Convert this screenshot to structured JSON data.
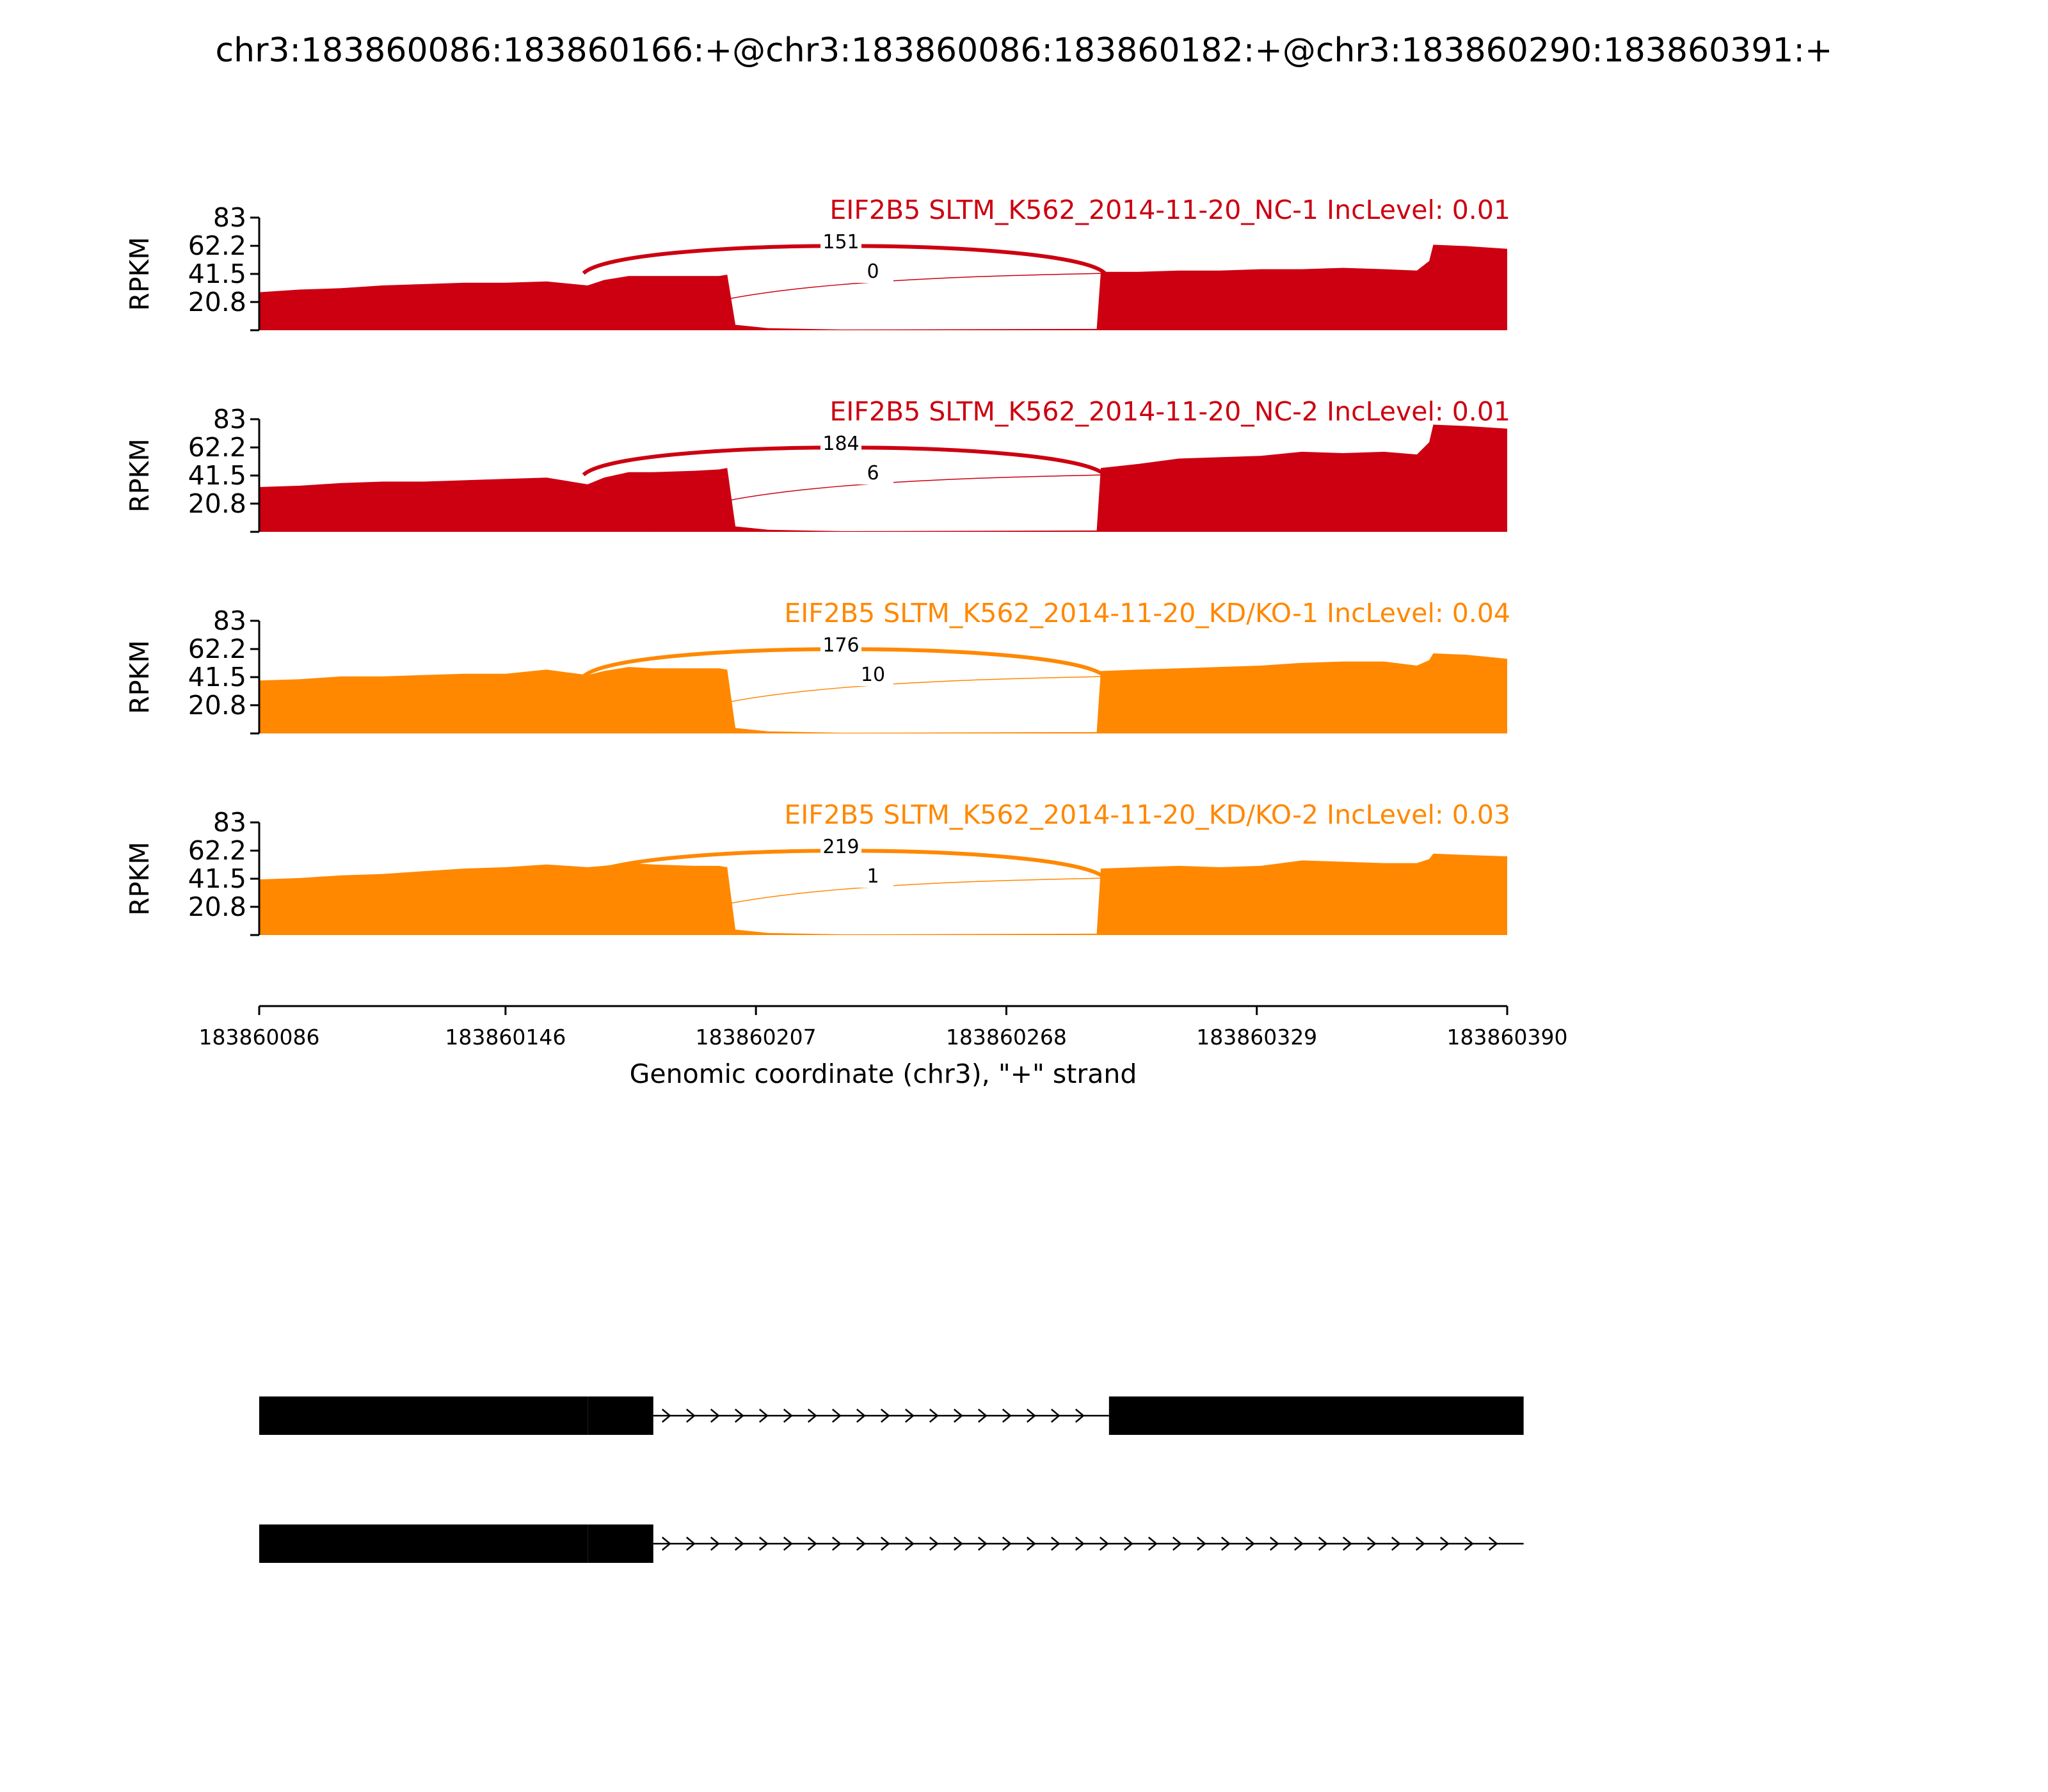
{
  "figure": {
    "title": "chr3:183860086:183860166:+@chr3:183860086:183860182:+@chr3:183860290:183860391:+"
  },
  "chart_data": {
    "type": "area",
    "title": "chr3:183860086:183860166:+@chr3:183860086:183860182:+@chr3:183860290:183860391:+",
    "ylabel": "RPKM",
    "xlabel": "Genomic coordinate (chr3), \"+\" strand",
    "xlim": [
      183860086,
      183860390
    ],
    "ylim": [
      0,
      83
    ],
    "yticks": [
      "83",
      "62.2",
      "41.5",
      "20.8"
    ],
    "yticks_values": [
      83,
      62.2,
      41.5,
      20.8
    ],
    "xticks": [
      "183860086",
      "183860146",
      "183860207",
      "183860268",
      "183860329",
      "183860390"
    ],
    "xticks_values": [
      183860086,
      183860146,
      183860207,
      183860268,
      183860329,
      183860390
    ],
    "grid": false,
    "series": [
      {
        "name": "EIF2B5 SLTM_K562_2014-11-20_NC-1 IncLevel: 0.01",
        "color": "#cc0011",
        "coverage": [
          [
            183860086,
            28
          ],
          [
            183860096,
            30
          ],
          [
            183860106,
            31
          ],
          [
            183860116,
            33
          ],
          [
            183860126,
            34
          ],
          [
            183860136,
            35
          ],
          [
            183860146,
            35
          ],
          [
            183860156,
            36
          ],
          [
            183860166,
            33
          ],
          [
            183860170,
            37
          ],
          [
            183860176,
            40
          ],
          [
            183860182,
            40
          ],
          [
            183860192,
            40
          ],
          [
            183860198,
            40
          ],
          [
            183860200,
            41
          ],
          [
            183860202,
            4
          ],
          [
            183860210,
            1.5
          ],
          [
            183860228,
            0.5
          ],
          [
            183860290,
            1
          ],
          [
            183860291,
            43
          ],
          [
            183860300,
            43
          ],
          [
            183860310,
            44
          ],
          [
            183860320,
            44
          ],
          [
            183860330,
            45
          ],
          [
            183860340,
            45
          ],
          [
            183860350,
            46
          ],
          [
            183860360,
            45
          ],
          [
            183860368,
            44
          ],
          [
            183860371,
            51
          ],
          [
            183860372,
            63
          ],
          [
            183860380,
            62
          ],
          [
            183860390,
            60
          ]
        ],
        "junctions": [
          {
            "from": 183860165,
            "to": 183860292,
            "count": "151"
          },
          {
            "from": 183860181,
            "to": 183860292,
            "count": "0"
          }
        ]
      },
      {
        "name": "EIF2B5 SLTM_K562_2014-11-20_NC-2 IncLevel: 0.01",
        "color": "#cc0011",
        "coverage": [
          [
            183860086,
            33
          ],
          [
            183860096,
            34
          ],
          [
            183860106,
            36
          ],
          [
            183860116,
            37
          ],
          [
            183860126,
            37
          ],
          [
            183860136,
            38
          ],
          [
            183860146,
            39
          ],
          [
            183860156,
            40
          ],
          [
            183860166,
            35
          ],
          [
            183860170,
            40
          ],
          [
            183860176,
            44
          ],
          [
            183860182,
            44
          ],
          [
            183860192,
            45
          ],
          [
            183860198,
            46
          ],
          [
            183860200,
            47
          ],
          [
            183860202,
            4
          ],
          [
            183860210,
            1.5
          ],
          [
            183860228,
            0.5
          ],
          [
            183860290,
            1
          ],
          [
            183860291,
            47
          ],
          [
            183860300,
            50
          ],
          [
            183860310,
            54
          ],
          [
            183860320,
            55
          ],
          [
            183860330,
            56
          ],
          [
            183860340,
            59
          ],
          [
            183860350,
            58
          ],
          [
            183860360,
            59
          ],
          [
            183860368,
            57
          ],
          [
            183860371,
            66
          ],
          [
            183860372,
            79
          ],
          [
            183860380,
            78
          ],
          [
            183860390,
            76
          ]
        ],
        "junctions": [
          {
            "from": 183860165,
            "to": 183860292,
            "count": "184"
          },
          {
            "from": 183860181,
            "to": 183860292,
            "count": "6"
          }
        ]
      },
      {
        "name": "EIF2B5 SLTM_K562_2014-11-20_KD/KO-1 IncLevel: 0.04",
        "color": "#ff8800",
        "coverage": [
          [
            183860086,
            39
          ],
          [
            183860096,
            40
          ],
          [
            183860106,
            42
          ],
          [
            183860116,
            42
          ],
          [
            183860126,
            43
          ],
          [
            183860136,
            44
          ],
          [
            183860146,
            44
          ],
          [
            183860156,
            47
          ],
          [
            183860166,
            43
          ],
          [
            183860170,
            46
          ],
          [
            183860176,
            49
          ],
          [
            183860182,
            48
          ],
          [
            183860192,
            48
          ],
          [
            183860198,
            48
          ],
          [
            183860200,
            47
          ],
          [
            183860202,
            4
          ],
          [
            183860210,
            1.5
          ],
          [
            183860228,
            0.5
          ],
          [
            183860290,
            1
          ],
          [
            183860291,
            46
          ],
          [
            183860300,
            47
          ],
          [
            183860310,
            48
          ],
          [
            183860320,
            49
          ],
          [
            183860330,
            50
          ],
          [
            183860340,
            52
          ],
          [
            183860350,
            53
          ],
          [
            183860360,
            53
          ],
          [
            183860368,
            50
          ],
          [
            183860371,
            54
          ],
          [
            183860372,
            59
          ],
          [
            183860380,
            58
          ],
          [
            183860390,
            55
          ]
        ],
        "junctions": [
          {
            "from": 183860165,
            "to": 183860292,
            "count": "176"
          },
          {
            "from": 183860181,
            "to": 183860292,
            "count": "10"
          }
        ]
      },
      {
        "name": "EIF2B5 SLTM_K562_2014-11-20_KD/KO-2 IncLevel: 0.03",
        "color": "#ff8800",
        "coverage": [
          [
            183860086,
            41
          ],
          [
            183860096,
            42
          ],
          [
            183860106,
            44
          ],
          [
            183860116,
            45
          ],
          [
            183860126,
            47
          ],
          [
            183860136,
            49
          ],
          [
            183860146,
            50
          ],
          [
            183860156,
            52
          ],
          [
            183860166,
            50
          ],
          [
            183860170,
            51
          ],
          [
            183860176,
            53
          ],
          [
            183860182,
            52
          ],
          [
            183860192,
            51
          ],
          [
            183860198,
            51
          ],
          [
            183860200,
            50
          ],
          [
            183860202,
            4
          ],
          [
            183860210,
            1.5
          ],
          [
            183860228,
            0.5
          ],
          [
            183860290,
            1
          ],
          [
            183860291,
            49
          ],
          [
            183860300,
            50
          ],
          [
            183860310,
            51
          ],
          [
            183860320,
            50
          ],
          [
            183860330,
            51
          ],
          [
            183860340,
            55
          ],
          [
            183860350,
            54
          ],
          [
            183860360,
            53
          ],
          [
            183860368,
            53
          ],
          [
            183860371,
            56
          ],
          [
            183860372,
            60
          ],
          [
            183860380,
            59
          ],
          [
            183860390,
            58
          ]
        ],
        "junctions": [
          {
            "from": 183860165,
            "to": 183860292,
            "count": "219"
          },
          {
            "from": 183860181,
            "to": 183860292,
            "count": "1"
          }
        ]
      }
    ]
  },
  "gene_models": [
    {
      "exons": [
        [
          183860086,
          183860166
        ],
        [
          183860166,
          183860182
        ],
        [
          183860293,
          183860394
        ]
      ],
      "line": [
        183860182,
        183860293
      ]
    },
    {
      "exons": [
        [
          183860086,
          183860166
        ],
        [
          183860166,
          183860182
        ]
      ],
      "line": [
        183860182,
        183860394
      ]
    }
  ]
}
